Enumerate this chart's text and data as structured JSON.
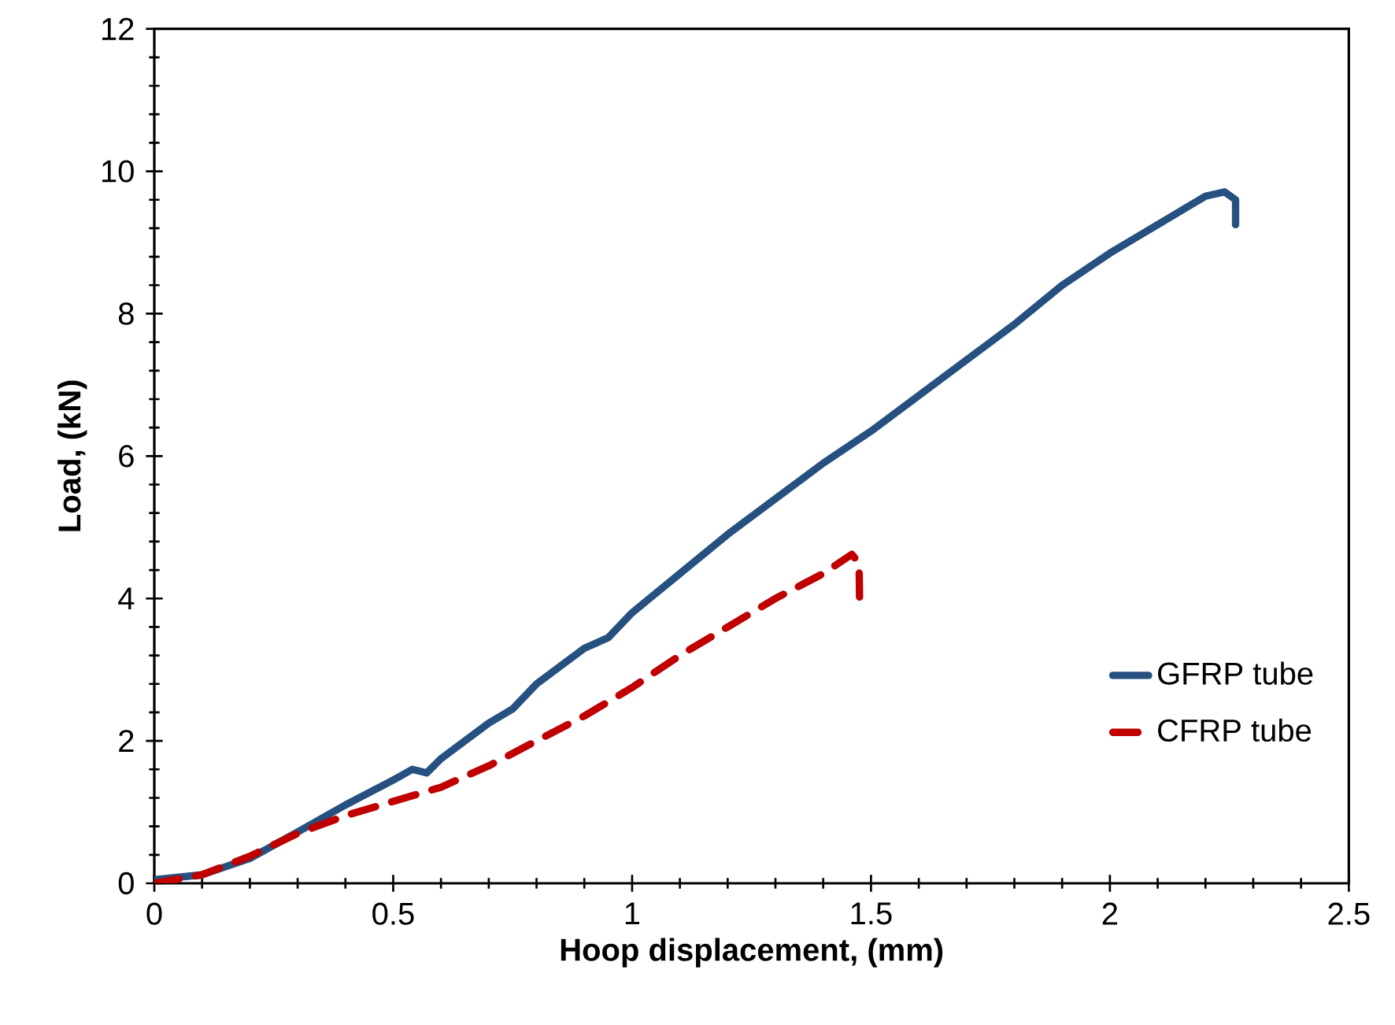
{
  "chart_data": {
    "type": "line",
    "xlabel": "Hoop displacement, (mm)",
    "ylabel": "Load, (kN)",
    "xlim": [
      0,
      2.5
    ],
    "xticks": [
      0,
      0.5,
      1,
      1.5,
      2,
      2.5
    ],
    "ylim": [
      0,
      12
    ],
    "yticks": [
      0,
      2,
      4,
      6,
      8,
      10,
      12
    ],
    "legend": "right",
    "series": [
      {
        "name": "GFRP tube",
        "color": "#25507f",
        "line_style": "solid",
        "x": [
          0,
          0.1,
          0.2,
          0.3,
          0.4,
          0.5,
          0.54,
          0.57,
          0.6,
          0.7,
          0.75,
          0.8,
          0.9,
          0.95,
          1.0,
          1.1,
          1.2,
          1.3,
          1.35,
          1.4,
          1.5,
          1.6,
          1.7,
          1.8,
          1.9,
          2.0,
          2.1,
          2.2,
          2.24,
          2.263,
          2.263
        ],
        "values": [
          0.05,
          0.12,
          0.35,
          0.72,
          1.1,
          1.45,
          1.6,
          1.55,
          1.75,
          2.25,
          2.45,
          2.8,
          3.3,
          3.45,
          3.8,
          4.35,
          4.9,
          5.4,
          5.65,
          5.9,
          6.35,
          6.85,
          7.35,
          7.85,
          8.4,
          8.85,
          9.25,
          9.65,
          9.71,
          9.6,
          9.25
        ]
      },
      {
        "name": "CFRP tube",
        "color": "#c00000",
        "line_style": "dashed",
        "x": [
          0,
          0.1,
          0.2,
          0.3,
          0.4,
          0.5,
          0.6,
          0.7,
          0.8,
          0.9,
          1.0,
          1.1,
          1.2,
          1.3,
          1.4,
          1.46,
          1.475,
          1.476
        ],
        "values": [
          0,
          0.12,
          0.38,
          0.7,
          0.95,
          1.15,
          1.35,
          1.65,
          2.0,
          2.35,
          2.75,
          3.2,
          3.6,
          4.0,
          4.35,
          4.62,
          4.5,
          4.02
        ]
      }
    ]
  }
}
